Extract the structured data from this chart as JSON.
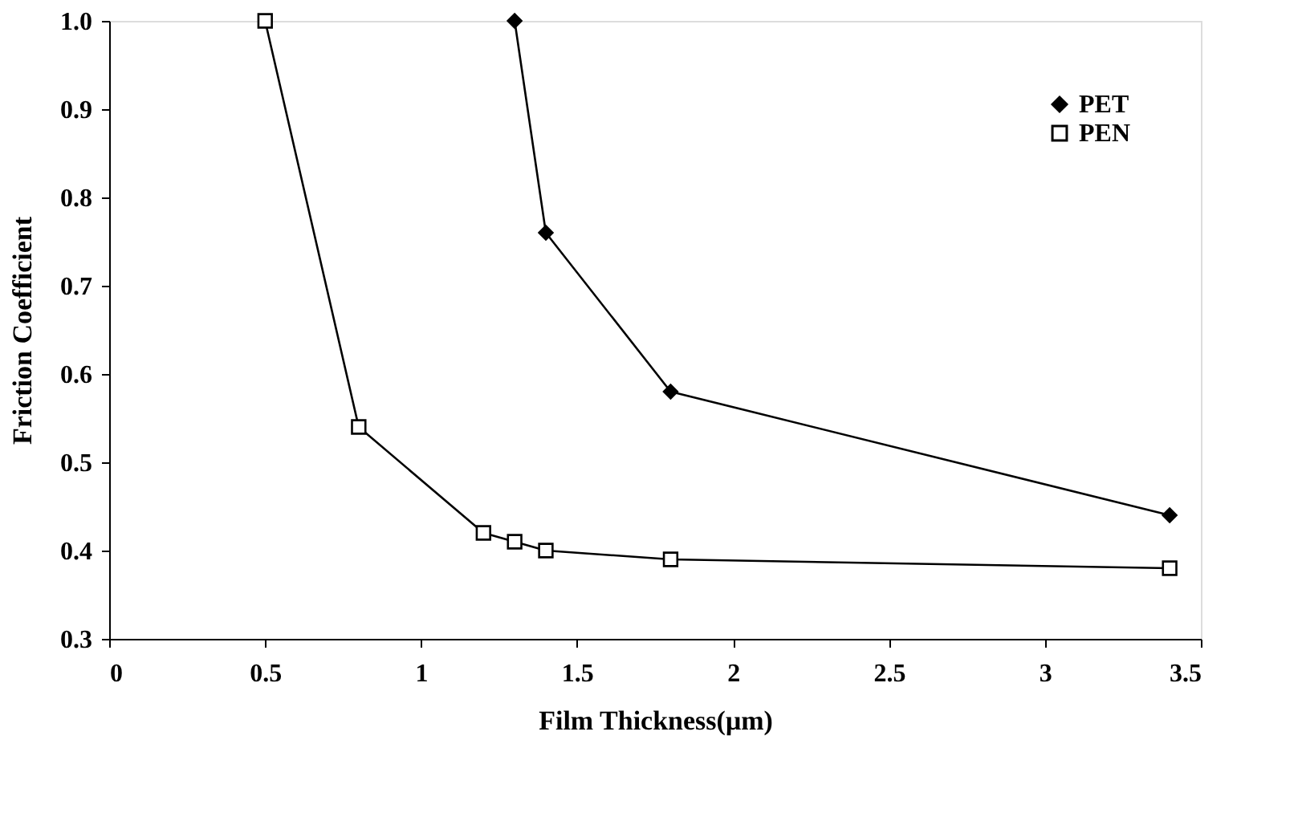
{
  "chart_data": {
    "type": "line",
    "xlabel": "Film Thickness(μm)",
    "ylabel": "Friction Coefficient",
    "xlim": [
      0,
      3.5
    ],
    "xticks": [
      0,
      0.5,
      1,
      1.5,
      2,
      2.5,
      3,
      3.5
    ],
    "ylim": [
      0.3,
      1.0
    ],
    "yticks": [
      0.3,
      0.4,
      0.5,
      0.6,
      0.7,
      0.8,
      0.9,
      {
        "value": 1.0,
        "label": "1.0"
      }
    ],
    "grid": false,
    "legend": "top right",
    "line_style": "solid",
    "series": [
      {
        "name": "PET",
        "color": "#000000",
        "marker": "diamond",
        "x": [
          1.3,
          1.4,
          1.8,
          3.4
        ],
        "values": [
          1.0,
          0.76,
          0.58,
          0.44
        ]
      },
      {
        "name": "PEN",
        "color": "#000000",
        "marker": "square",
        "x": [
          0.5,
          0.8,
          1.2,
          1.3,
          1.4,
          1.8,
          3.4
        ],
        "values": [
          1.0,
          0.54,
          0.42,
          0.41,
          0.4,
          0.39,
          0.38
        ]
      }
    ]
  }
}
